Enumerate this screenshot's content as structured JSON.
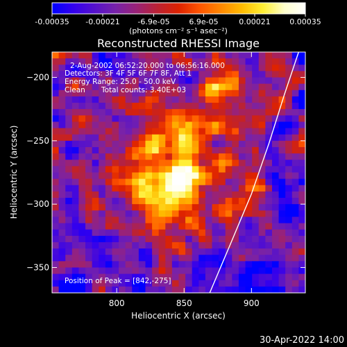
{
  "colorbar": {
    "tick_labels": [
      "-0.00035",
      "-0.00021",
      "-6.9e-05",
      "6.9e-05",
      "0.00021",
      "0.00035"
    ],
    "tick_values": [
      -0.00035,
      -0.00021,
      -6.9e-05,
      6.9e-05,
      0.00021,
      0.00035
    ],
    "range": [
      -0.00035,
      0.00035
    ],
    "units_label": "(photons cm⁻² s⁻¹ asec⁻²)",
    "colormap": [
      "#0000ff",
      "#3300ee",
      "#5511cc",
      "#7722aa",
      "#992277",
      "#bb2233",
      "#dd2200",
      "#ff5500",
      "#ff8800",
      "#ffbb00",
      "#ffee33",
      "#ffffcc",
      "#ffffff"
    ]
  },
  "chart_data": {
    "type": "heatmap",
    "title": "Reconstructed RHESSI Image",
    "xlabel": "Heliocentric X (arcsec)",
    "ylabel": "Heliocentric Y (arcsec)",
    "xlim": [
      752,
      940
    ],
    "ylim": [
      -370,
      -180
    ],
    "xticks": [
      800,
      850,
      900
    ],
    "yticks": [
      -200,
      -250,
      -300,
      -350
    ],
    "annotations": [
      "2-Aug-2002 06:52:20.000 to 06:56:16.000",
      "Detectors: 3F 4F 5F 6F 7F 8F, Att 1",
      "Energy Range: 25.0 - 50.0 keV",
      "Clean",
      "Total counts: 3.40E+03"
    ],
    "peak_label": "Position of Peak = [842,-275]",
    "peak_position": [
      842,
      -275
    ],
    "grid": false,
    "limb_color": "#ffffff"
  },
  "footer": {
    "timestamp": "30-Apr-2022 14:00"
  }
}
